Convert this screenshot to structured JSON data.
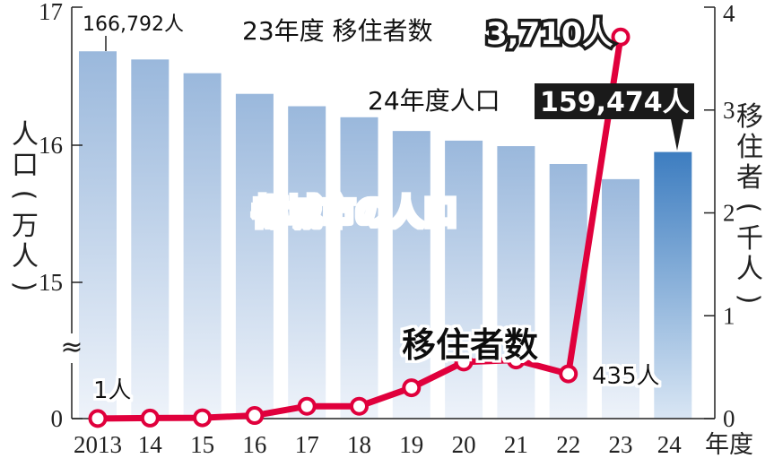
{
  "chart_data": {
    "type": "bar+line",
    "categories": [
      "2013",
      "14",
      "15",
      "16",
      "17",
      "18",
      "19",
      "20",
      "21",
      "22",
      "23",
      "24"
    ],
    "x_unit": "年度",
    "left_axis": {
      "label": "人口(万人)",
      "ticks": [
        "0",
        "15",
        "16",
        "17"
      ],
      "break": true
    },
    "right_axis": {
      "label": "移住者(千人)",
      "ticks": [
        "0",
        "1",
        "2",
        "3",
        "4"
      ],
      "range": [
        0,
        4
      ]
    },
    "bar_series": {
      "name": "都城市の人口",
      "values": [
        166792,
        166200,
        165200,
        163700,
        162800,
        162000,
        161000,
        160300,
        159900,
        158600,
        157500,
        159474
      ],
      "color_light": "#9fbadc",
      "color_highlight": "#3f7fbf"
    },
    "line_series": {
      "name": "移住者数",
      "values": [
        0.001,
        0.005,
        0.008,
        0.03,
        0.12,
        0.12,
        0.3,
        0.55,
        0.57,
        0.435,
        3.71
      ],
      "color": "#e0003c"
    },
    "annotations": {
      "first_bar": "166,792人",
      "first_point": "1人",
      "point_22": "435人",
      "callout_23_label": "23年度 移住者数",
      "callout_23_value": "3,710人",
      "callout_24_label": "24年度人口",
      "callout_24_value": "159,474人"
    },
    "axis_break_symbol": "≈"
  }
}
